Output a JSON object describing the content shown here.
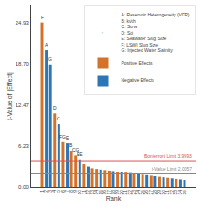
{
  "chart_data": {
    "type": "bar",
    "xlabel": "Rank",
    "ylabel": "t-Value of |Effect|",
    "categories": [
      "1",
      "2",
      "3",
      "4",
      "5",
      "6",
      "7",
      "8",
      "9",
      "10",
      "11",
      "12",
      "13",
      "14",
      "15",
      "16",
      "17",
      "18",
      "19",
      "20",
      "21",
      "22",
      "23",
      "24",
      "25",
      "26",
      "27",
      "28",
      "29",
      "30",
      "31",
      "32",
      "33",
      "34",
      "35"
    ],
    "series": [
      {
        "name": "A: Reservoir Heterogeneity (VDP)",
        "marker": "none",
        "values": [
          null,
          null,
          null,
          null,
          null,
          null,
          null,
          null,
          null,
          null,
          null,
          null,
          null,
          null,
          null,
          null,
          null,
          null,
          null,
          null,
          null,
          null,
          null,
          null,
          null,
          null,
          null,
          null,
          null,
          null,
          null,
          null,
          null,
          null,
          null
        ]
      },
      {
        "name": "B: kvkh",
        "marker": "none",
        "values": [
          null,
          null,
          null,
          null,
          null,
          null,
          null,
          null,
          null,
          null,
          null,
          null,
          null,
          null,
          null,
          null,
          null,
          null,
          null,
          null,
          null,
          null,
          null,
          null,
          null,
          null,
          null,
          null,
          null,
          null,
          null,
          null,
          null,
          null,
          null
        ]
      },
      {
        "name": "C: Sorw",
        "marker": "none",
        "values": [
          null,
          null,
          null,
          null,
          null,
          null,
          null,
          null,
          null,
          null,
          null,
          null,
          null,
          null,
          null,
          null,
          null,
          null,
          null,
          null,
          null,
          null,
          null,
          null,
          null,
          null,
          null,
          null,
          null,
          null,
          null,
          null,
          null,
          null,
          null
        ]
      },
      {
        "name": "D: Soi",
        "marker": "none",
        "values": [
          null,
          null,
          null,
          null,
          null,
          null,
          null,
          null,
          null,
          null,
          null,
          null,
          null,
          null,
          null,
          null,
          null,
          null,
          null,
          null,
          null,
          null,
          null,
          null,
          null,
          null,
          null,
          null,
          null,
          null,
          null,
          null,
          null,
          null,
          null
        ]
      },
      {
        "name": "E: Seawater Slug Size",
        "marker": "none",
        "values": [
          null,
          null,
          null,
          null,
          null,
          null,
          null,
          null,
          null,
          null,
          null,
          null,
          null,
          null,
          null,
          null,
          null,
          null,
          null,
          null,
          null,
          null,
          null,
          null,
          null,
          null,
          null,
          null,
          null,
          null,
          null,
          null,
          null,
          null,
          null
        ]
      },
      {
        "name": "F: LSWI Slug Size",
        "marker": "none",
        "values": [
          null,
          null,
          null,
          null,
          null,
          null,
          null,
          null,
          null,
          null,
          null,
          null,
          null,
          null,
          null,
          null,
          null,
          null,
          null,
          null,
          null,
          null,
          null,
          null,
          null,
          null,
          null,
          null,
          null,
          null,
          null,
          null,
          null,
          null,
          null
        ]
      },
      {
        "name": "G: Injected Water Salinity",
        "marker": "none",
        "values": [
          null,
          null,
          null,
          null,
          null,
          null,
          null,
          null,
          null,
          null,
          null,
          null,
          null,
          null,
          null,
          null,
          null,
          null,
          null,
          null,
          null,
          null,
          null,
          null,
          null,
          null,
          null,
          null,
          null,
          null,
          null,
          null,
          null,
          null,
          null
        ]
      },
      {
        "name": "Positive Effects",
        "color": "#D4722A",
        "values": [
          24.93,
          null,
          null,
          11.15,
          null,
          6.8,
          null,
          5.52,
          4.78,
          null,
          3.45,
          null,
          2.85,
          2.75,
          null,
          2.58,
          2.5,
          null,
          2.35,
          null,
          2.2,
          null,
          2.05,
          null,
          1.9,
          null,
          1.74,
          null,
          1.58,
          null,
          1.42,
          null,
          1.26,
          null,
          null
        ]
      },
      {
        "name": "Negative Effects",
        "color": "#2E75B6",
        "values": [
          null,
          20.72,
          18.55,
          null,
          9.53,
          null,
          6.62,
          null,
          null,
          4.18,
          null,
          3.1,
          null,
          null,
          2.65,
          null,
          null,
          2.42,
          null,
          2.28,
          null,
          2.12,
          null,
          1.98,
          null,
          1.82,
          null,
          1.66,
          null,
          1.5,
          null,
          1.34,
          null,
          1.18,
          1.1
        ]
      }
    ],
    "annotations": [
      {
        "x": "1",
        "text": "F"
      },
      {
        "x": "2",
        "text": "A"
      },
      {
        "x": "3",
        "text": "G"
      },
      {
        "x": "4",
        "text": "D"
      },
      {
        "x": "5",
        "text": "C"
      },
      {
        "x": "6",
        "text": "FG"
      },
      {
        "x": "7",
        "text": "E"
      },
      {
        "x": "8",
        "text": "B"
      },
      {
        "x": "9",
        "text": "CG"
      },
      {
        "x": "10",
        "text": "EE"
      }
    ],
    "hlines": [
      {
        "y": 3.9993,
        "label": "Bonferroni Limit 3.9993",
        "color": "#E05050"
      },
      {
        "y": 2.0057,
        "label": "t-Value Limit 2.0057",
        "color": "#888888"
      }
    ],
    "ylim": [
      0,
      27.5
    ],
    "yticks": [
      {
        "value": 0.0,
        "label": "0.00"
      },
      6.23,
      12.47,
      {
        "value": 18.7,
        "label": "18.70"
      },
      24.93
    ],
    "grid": false,
    "legend": "upper right"
  }
}
